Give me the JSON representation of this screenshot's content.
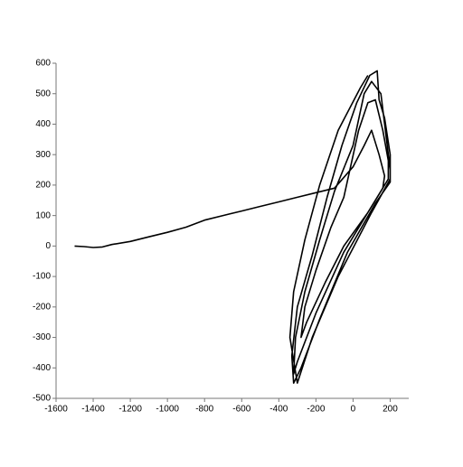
{
  "chart_data": {
    "type": "line",
    "x": [
      -1500,
      -1450,
      -1400,
      -1350,
      -1300,
      -1200,
      -1100,
      -1000,
      -900,
      -800,
      -700,
      -600,
      -500,
      -400,
      -300,
      -200,
      -100,
      0,
      60,
      100,
      140,
      170,
      160,
      80,
      -50,
      -150,
      -250,
      -280,
      -260,
      -200,
      -120,
      -50,
      30,
      80,
      120,
      160,
      190,
      190,
      100,
      -50,
      -200,
      -300,
      -320,
      -310,
      -260,
      -180,
      -100,
      0,
      60,
      100,
      150,
      180,
      200,
      200,
      120,
      -30,
      -180,
      -280,
      -320,
      -330,
      -300,
      -220,
      -140,
      -60,
      20,
      90,
      130,
      140,
      170,
      200,
      200,
      100,
      -80,
      -220,
      -300,
      -340,
      -320,
      -260,
      -180,
      -80,
      40,
      80
    ],
    "series": [
      {
        "color": "#000000",
        "values": [
          0,
          -2,
          -5,
          -3,
          5,
          15,
          30,
          45,
          62,
          85,
          100,
          115,
          130,
          145,
          160,
          175,
          190,
          260,
          330,
          380,
          300,
          230,
          190,
          110,
          0,
          -120,
          -250,
          -300,
          -200,
          -80,
          60,
          160,
          380,
          470,
          480,
          380,
          280,
          220,
          130,
          -20,
          -220,
          -380,
          -420,
          -300,
          -150,
          20,
          180,
          330,
          500,
          540,
          500,
          350,
          250,
          210,
          140,
          -20,
          -240,
          -400,
          -450,
          -360,
          -200,
          -30,
          160,
          330,
          470,
          560,
          575,
          480,
          420,
          300,
          220,
          110,
          -100,
          -300,
          -450,
          -300,
          -150,
          20,
          200,
          380,
          520,
          560
        ]
      }
    ],
    "xlim": [
      -1600,
      300
    ],
    "ylim": [
      -500,
      600
    ],
    "xticks": [
      -1600,
      -1400,
      -1200,
      -1000,
      -800,
      -600,
      -400,
      -200,
      0,
      200
    ],
    "yticks": [
      -500,
      -400,
      -300,
      -200,
      -100,
      0,
      100,
      200,
      300,
      400,
      500,
      600
    ]
  }
}
